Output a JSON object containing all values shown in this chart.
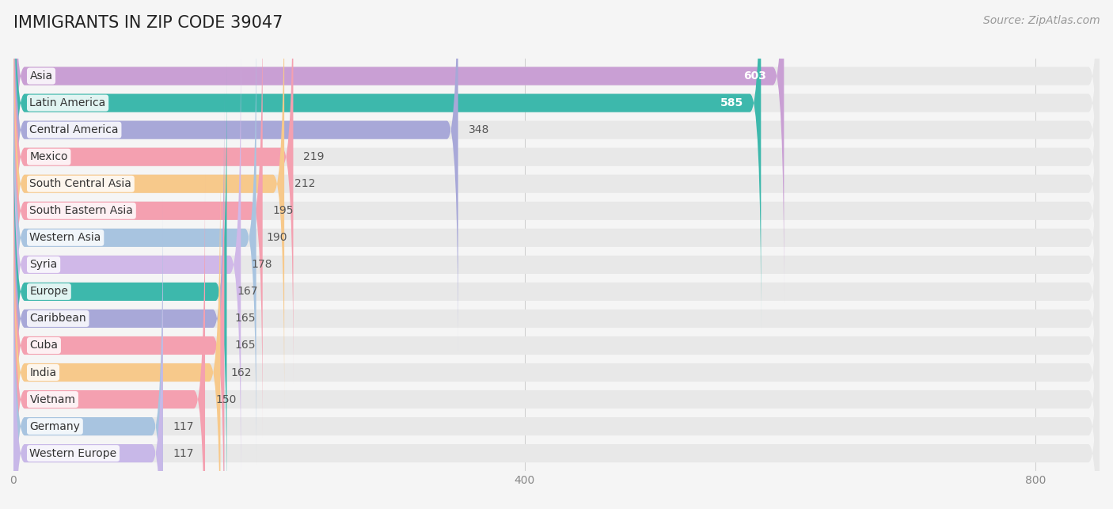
{
  "title": "IMMIGRANTS IN ZIP CODE 39047",
  "source": "Source: ZipAtlas.com",
  "categories": [
    "Asia",
    "Latin America",
    "Central America",
    "Mexico",
    "South Central Asia",
    "South Eastern Asia",
    "Western Asia",
    "Syria",
    "Europe",
    "Caribbean",
    "Cuba",
    "India",
    "Vietnam",
    "Germany",
    "Western Europe"
  ],
  "values": [
    603,
    585,
    348,
    219,
    212,
    195,
    190,
    178,
    167,
    165,
    165,
    162,
    150,
    117,
    117
  ],
  "colors": [
    "#c99fd4",
    "#3db8ac",
    "#a8a8d8",
    "#f4a0b0",
    "#f7c98b",
    "#f4a0b0",
    "#a8c4e0",
    "#d0b8e8",
    "#3db8ac",
    "#a8a8d8",
    "#f4a0b0",
    "#f7c98b",
    "#f4a0b0",
    "#a8c4e0",
    "#c8b8e8"
  ],
  "xlim_max": 850,
  "background_color": "#f5f5f5",
  "bar_bg_color": "#e8e8e8",
  "title_fontsize": 15,
  "label_fontsize": 10,
  "value_fontsize": 10,
  "source_fontsize": 10,
  "bar_height": 0.68
}
